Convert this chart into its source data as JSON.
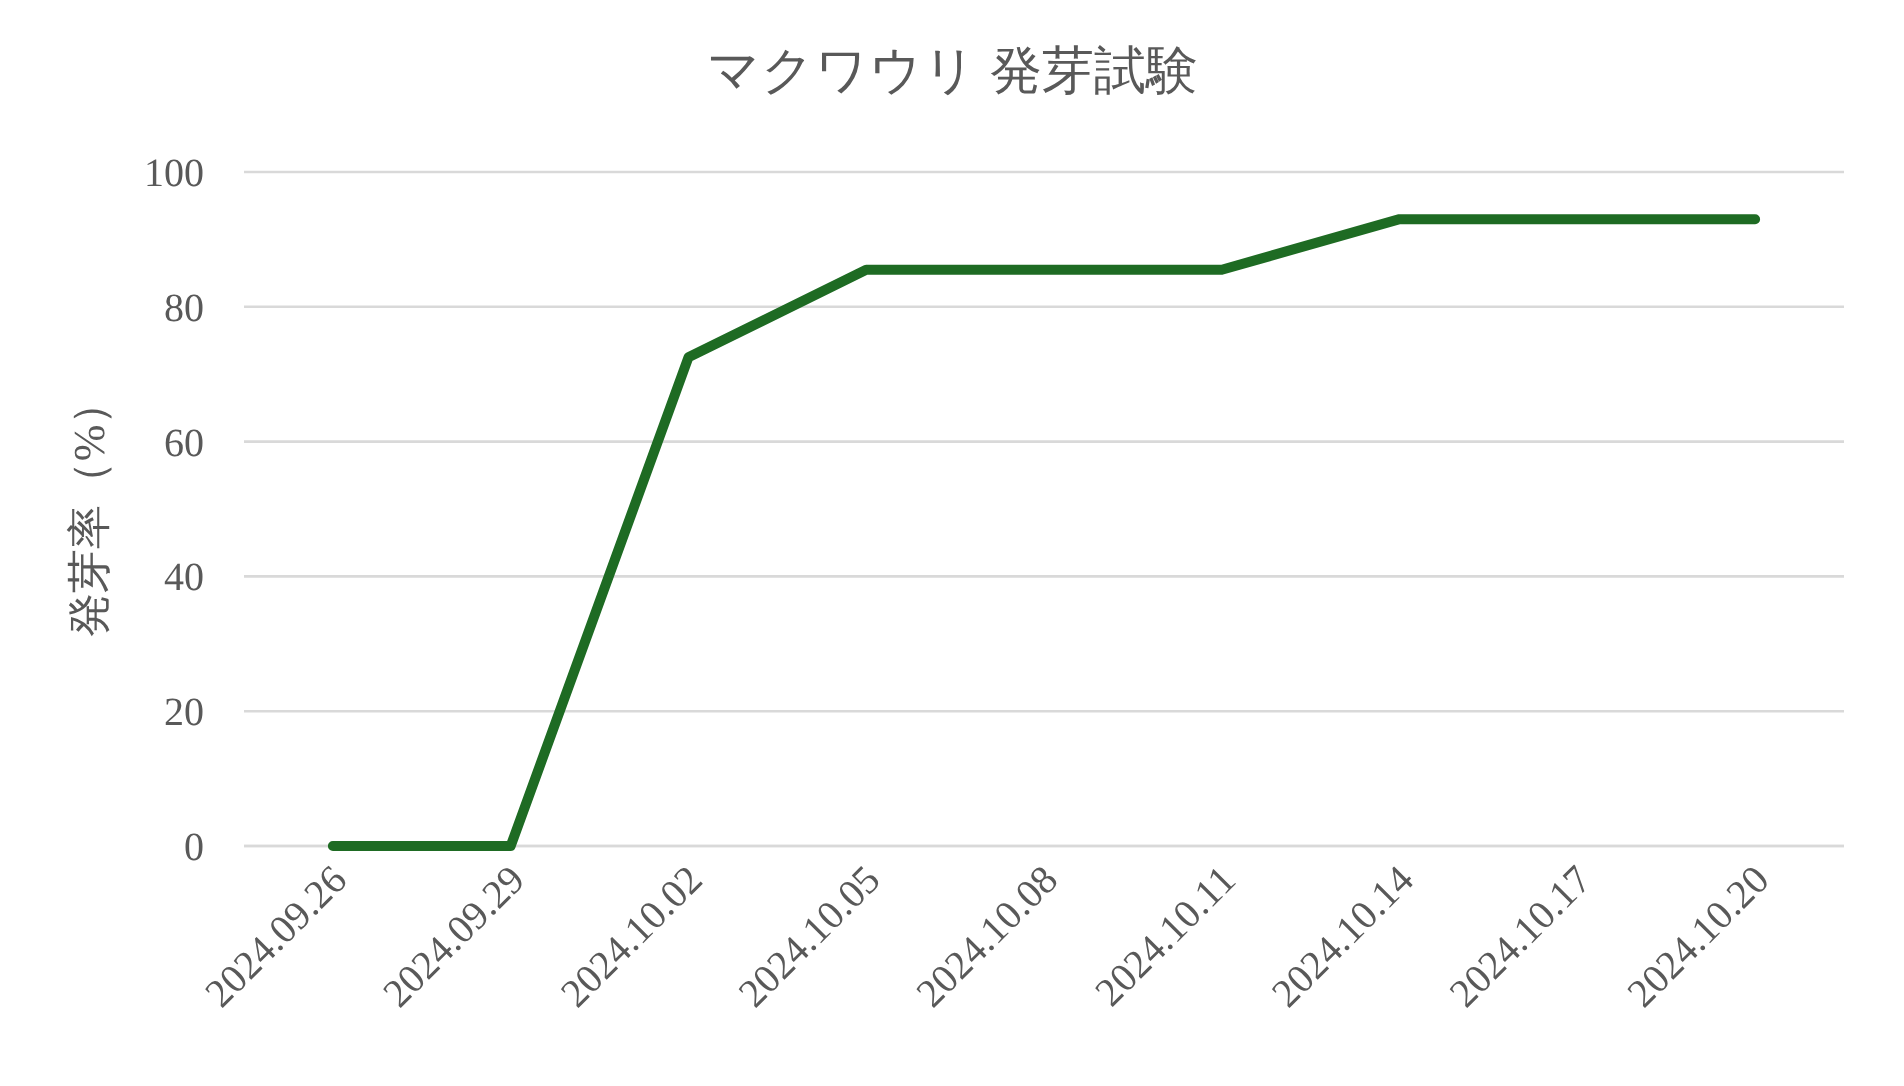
{
  "chart_data": {
    "type": "line",
    "title": "マクワウリ 発芽試験",
    "ylabel": "発芽率（%）",
    "categories": [
      "2024.09.26",
      "2024.09.29",
      "2024.10.02",
      "2024.10.05",
      "2024.10.08",
      "2024.10.11",
      "2024.10.14",
      "2024.10.17",
      "2024.10.20"
    ],
    "series": [
      {
        "color": "#1e6b23",
        "values": [
          0,
          0,
          72.5,
          85.5,
          85.5,
          85.5,
          93,
          93,
          93
        ]
      }
    ],
    "ylim": [
      0,
      100
    ],
    "yticks": [
      0,
      20,
      40,
      60,
      80,
      100
    ],
    "grid": "y",
    "marker": "none",
    "line_style": "solid"
  }
}
